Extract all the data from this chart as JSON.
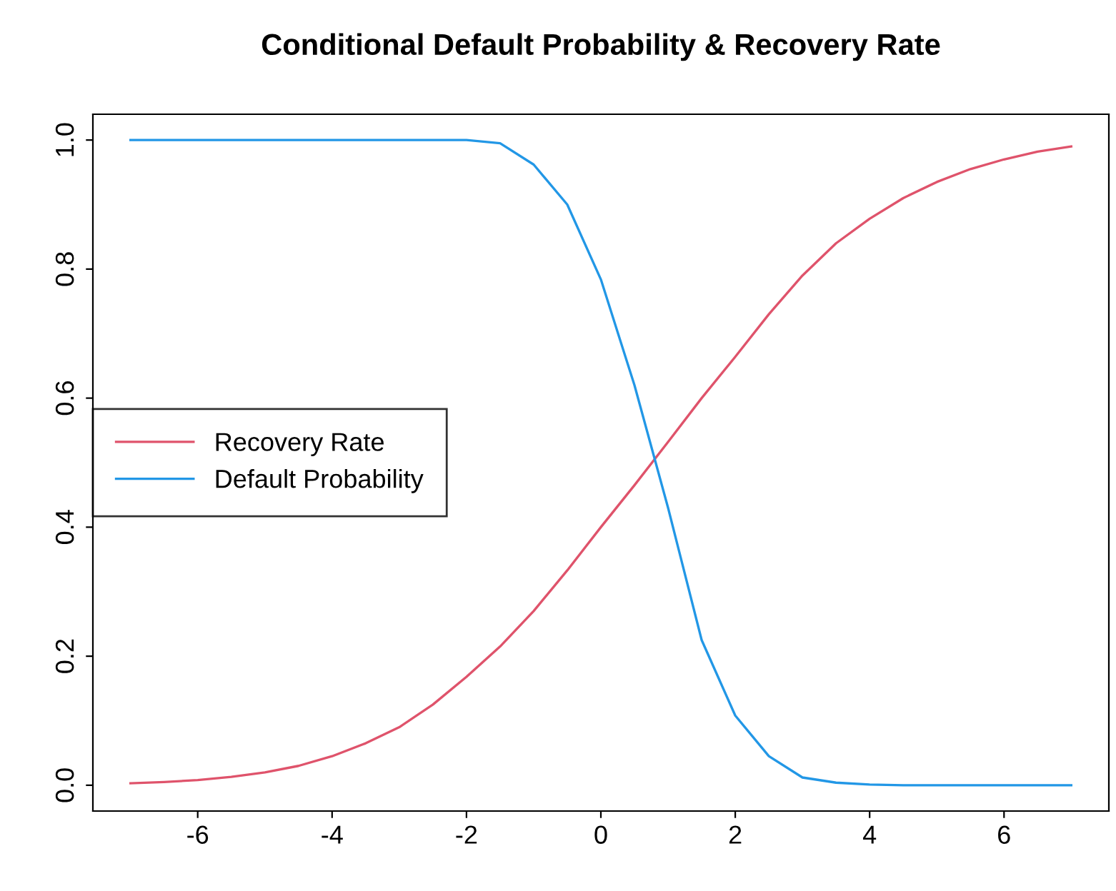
{
  "chart_data": {
    "type": "line",
    "title": "Conditional Default Probability & Recovery Rate",
    "x": [
      -7,
      -6.5,
      -6,
      -5.5,
      -5,
      -4.5,
      -4,
      -3.5,
      -3,
      -2.5,
      -2,
      -1.5,
      -1,
      -0.5,
      0,
      0.5,
      1,
      1.5,
      2,
      2.5,
      3,
      3.5,
      4,
      4.5,
      5,
      5.5,
      6,
      6.5,
      7
    ],
    "series": [
      {
        "name": "Recovery Rate",
        "color": "#df536b",
        "values": [
          0.003,
          0.005,
          0.008,
          0.013,
          0.02,
          0.03,
          0.045,
          0.065,
          0.09,
          0.125,
          0.168,
          0.215,
          0.27,
          0.333,
          0.4,
          0.465,
          0.532,
          0.6,
          0.664,
          0.73,
          0.79,
          0.84,
          0.878,
          0.91,
          0.935,
          0.955,
          0.97,
          0.982,
          0.99
        ]
      },
      {
        "name": "Default Probability",
        "color": "#2297e6",
        "values": [
          1,
          1,
          1,
          1,
          1,
          1,
          1,
          1,
          1,
          1,
          1,
          0.995,
          0.962,
          0.9,
          0.784,
          0.62,
          0.43,
          0.225,
          0.108,
          0.045,
          0.012,
          0.004,
          0.001,
          0,
          0,
          0,
          0,
          0,
          0
        ]
      }
    ],
    "xlim": [
      -7.56,
      7.56
    ],
    "ylim": [
      -0.04,
      1.04
    ],
    "xticks": [
      -6,
      -4,
      -2,
      0,
      2,
      4,
      6
    ],
    "yticks": [
      {
        "value": 0,
        "label": "0.0"
      },
      {
        "value": 0.2,
        "label": "0.2"
      },
      {
        "value": 0.4,
        "label": "0.4"
      },
      {
        "value": 0.6,
        "label": "0.6"
      },
      {
        "value": 0.8,
        "label": "0.8"
      },
      {
        "value": 1,
        "label": "1.0"
      }
    ],
    "grid": false,
    "legend": "left",
    "marker": "none",
    "line_style": "solid"
  }
}
